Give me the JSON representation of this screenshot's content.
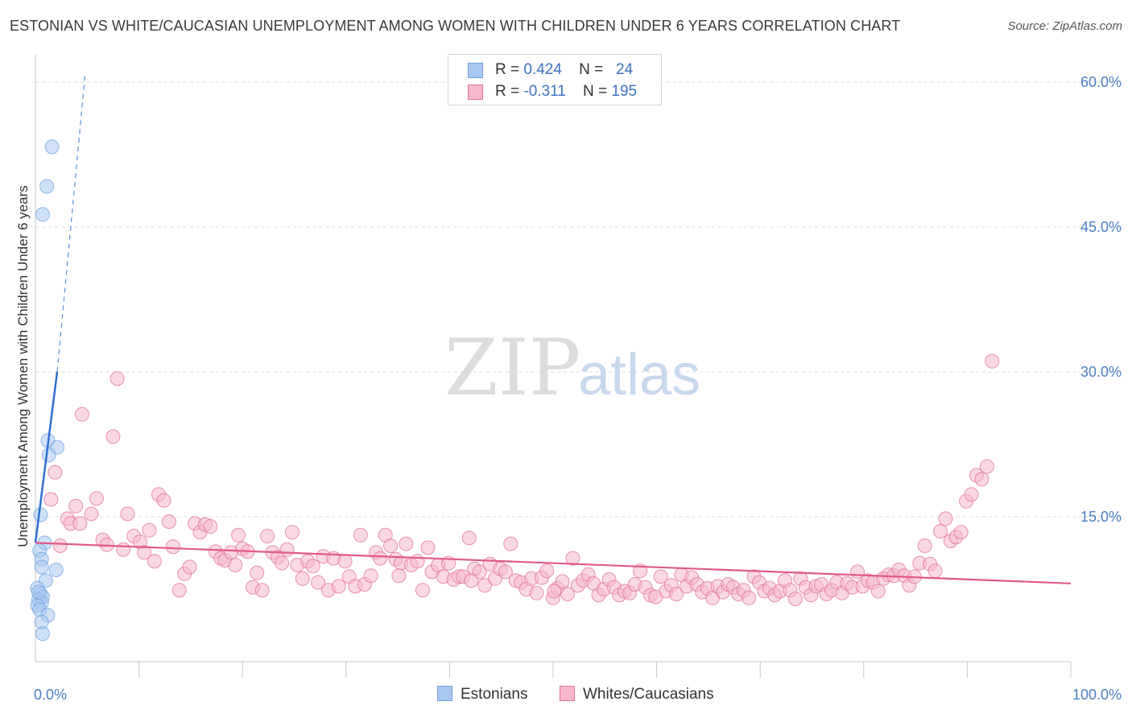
{
  "title": "ESTONIAN VS WHITE/CAUCASIAN UNEMPLOYMENT AMONG WOMEN WITH CHILDREN UNDER 6 YEARS CORRELATION CHART",
  "source": "Source: ZipAtlas.com",
  "watermark": {
    "zip": "ZIP",
    "atlas": "atlas"
  },
  "legend": {
    "series1": {
      "r_label": "R =",
      "r_value": "0.424",
      "n_label": "N =",
      "n_value": "24",
      "color": "#a9c8f0"
    },
    "series2": {
      "r_label": "R =",
      "r_value": "-0.311",
      "n_label": "N =",
      "n_value": "195",
      "color": "#f5b8cb"
    }
  },
  "bottom_legend": {
    "series1": "Estonians",
    "series2": "Whites/Caucasians"
  },
  "chart_data": {
    "type": "scatter",
    "title": "ESTONIAN VS WHITE/CAUCASIAN UNEMPLOYMENT AMONG WOMEN WITH CHILDREN UNDER 6 YEARS CORRELATION CHART",
    "xlabel": "",
    "ylabel": "Unemployment Among Women with Children Under 6 years",
    "xlim": [
      0,
      100
    ],
    "ylim": [
      0,
      62
    ],
    "x_tick_labels": [
      "0.0%",
      "100.0%"
    ],
    "y_ticks": [
      15,
      30,
      45,
      60
    ],
    "y_tick_labels": [
      "15.0%",
      "30.0%",
      "45.0%",
      "60.0%"
    ],
    "grid": true,
    "series": [
      {
        "name": "Estonians",
        "color": "#6fa0df",
        "fill": "#a9c8f0",
        "r": 0.424,
        "n": 24,
        "trend": {
          "x0": 0,
          "y0": 12.3,
          "x1": 2.1,
          "y1": 30.0,
          "dash_to": [
            4.8,
            60.8
          ]
        },
        "points": [
          [
            1.6,
            53.3
          ],
          [
            1.1,
            49.2
          ],
          [
            0.7,
            46.3
          ],
          [
            1.2,
            22.9
          ],
          [
            2.1,
            22.2
          ],
          [
            1.3,
            21.4
          ],
          [
            0.5,
            15.2
          ],
          [
            0.9,
            12.3
          ],
          [
            0.4,
            11.5
          ],
          [
            0.6,
            10.6
          ],
          [
            0.6,
            9.8
          ],
          [
            2.0,
            9.5
          ],
          [
            1.0,
            8.4
          ],
          [
            0.2,
            7.6
          ],
          [
            0.5,
            7.0
          ],
          [
            0.7,
            6.7
          ],
          [
            0.3,
            6.4
          ],
          [
            0.6,
            6.1
          ],
          [
            0.2,
            5.8
          ],
          [
            0.4,
            5.4
          ],
          [
            1.2,
            4.8
          ],
          [
            0.6,
            4.1
          ],
          [
            0.7,
            2.9
          ],
          [
            0.3,
            7.2
          ]
        ]
      },
      {
        "name": "Whites/Caucasians",
        "color": "#e07099",
        "fill": "#f5b8cb",
        "r": -0.311,
        "n": 195,
        "trend": {
          "x0": 0,
          "y0": 12.3,
          "x1": 100,
          "y1": 8.1
        },
        "points": [
          [
            7.9,
            29.3
          ],
          [
            4.5,
            25.6
          ],
          [
            7.5,
            23.3
          ],
          [
            1.9,
            19.6
          ],
          [
            1.5,
            16.8
          ],
          [
            3.9,
            16.1
          ],
          [
            5.9,
            16.9
          ],
          [
            8.9,
            15.3
          ],
          [
            11.9,
            17.3
          ],
          [
            12.4,
            16.7
          ],
          [
            2.4,
            12.0
          ],
          [
            3.1,
            14.8
          ],
          [
            3.4,
            14.3
          ],
          [
            4.3,
            14.3
          ],
          [
            5.4,
            15.3
          ],
          [
            6.5,
            12.6
          ],
          [
            6.9,
            12.1
          ],
          [
            8.5,
            11.6
          ],
          [
            9.5,
            13.0
          ],
          [
            10.1,
            12.4
          ],
          [
            10.5,
            11.3
          ],
          [
            11.0,
            13.6
          ],
          [
            11.5,
            10.4
          ],
          [
            12.9,
            14.5
          ],
          [
            13.3,
            11.9
          ],
          [
            13.9,
            7.4
          ],
          [
            14.4,
            9.1
          ],
          [
            14.9,
            9.8
          ],
          [
            15.4,
            14.3
          ],
          [
            15.9,
            13.4
          ],
          [
            16.4,
            14.2
          ],
          [
            16.9,
            14.0
          ],
          [
            17.4,
            11.4
          ],
          [
            17.9,
            10.7
          ],
          [
            18.3,
            10.5
          ],
          [
            18.9,
            11.3
          ],
          [
            19.3,
            10.0
          ],
          [
            19.6,
            13.1
          ],
          [
            20.0,
            11.7
          ],
          [
            20.5,
            11.4
          ],
          [
            21.0,
            7.7
          ],
          [
            21.4,
            9.2
          ],
          [
            21.9,
            7.4
          ],
          [
            22.4,
            13.0
          ],
          [
            22.9,
            11.3
          ],
          [
            23.4,
            10.8
          ],
          [
            23.8,
            10.2
          ],
          [
            24.3,
            11.6
          ],
          [
            24.8,
            13.4
          ],
          [
            25.3,
            10.0
          ],
          [
            25.8,
            8.6
          ],
          [
            26.3,
            10.4
          ],
          [
            26.8,
            9.9
          ],
          [
            27.3,
            8.2
          ],
          [
            27.8,
            10.9
          ],
          [
            28.3,
            7.4
          ],
          [
            28.8,
            10.7
          ],
          [
            29.3,
            7.8
          ],
          [
            29.9,
            10.4
          ],
          [
            30.3,
            8.8
          ],
          [
            30.9,
            7.8
          ],
          [
            31.4,
            13.1
          ],
          [
            31.8,
            8.0
          ],
          [
            32.4,
            8.9
          ],
          [
            32.9,
            11.3
          ],
          [
            33.3,
            10.7
          ],
          [
            33.8,
            13.1
          ],
          [
            34.3,
            12.0
          ],
          [
            34.8,
            10.6
          ],
          [
            35.3,
            10.2
          ],
          [
            35.8,
            12.2
          ],
          [
            36.3,
            10.0
          ],
          [
            36.9,
            10.4
          ],
          [
            37.4,
            7.4
          ],
          [
            37.9,
            11.8
          ],
          [
            38.3,
            9.3
          ],
          [
            38.9,
            10.0
          ],
          [
            39.4,
            8.8
          ],
          [
            39.9,
            10.2
          ],
          [
            40.4,
            8.5
          ],
          [
            40.9,
            8.8
          ],
          [
            41.3,
            8.8
          ],
          [
            41.9,
            12.8
          ],
          [
            42.4,
            9.6
          ],
          [
            42.9,
            9.3
          ],
          [
            43.4,
            7.9
          ],
          [
            43.9,
            10.1
          ],
          [
            44.4,
            8.6
          ],
          [
            44.9,
            9.6
          ],
          [
            45.4,
            9.3
          ],
          [
            45.9,
            12.2
          ],
          [
            46.4,
            8.4
          ],
          [
            46.9,
            8.2
          ],
          [
            47.4,
            7.5
          ],
          [
            47.9,
            8.6
          ],
          [
            48.4,
            7.1
          ],
          [
            48.9,
            8.7
          ],
          [
            49.4,
            9.4
          ],
          [
            50.0,
            6.6
          ],
          [
            50.4,
            7.6
          ],
          [
            50.9,
            8.3
          ],
          [
            51.4,
            7.0
          ],
          [
            51.9,
            10.7
          ],
          [
            52.4,
            7.9
          ],
          [
            52.9,
            8.4
          ],
          [
            53.4,
            9.0
          ],
          [
            53.9,
            8.1
          ],
          [
            54.4,
            6.9
          ],
          [
            54.9,
            7.5
          ],
          [
            55.4,
            8.5
          ],
          [
            55.9,
            7.7
          ],
          [
            56.4,
            6.9
          ],
          [
            56.9,
            7.3
          ],
          [
            57.4,
            7.1
          ],
          [
            57.9,
            8.0
          ],
          [
            58.4,
            9.4
          ],
          [
            58.9,
            7.7
          ],
          [
            59.4,
            6.9
          ],
          [
            59.9,
            6.7
          ],
          [
            60.4,
            8.8
          ],
          [
            60.9,
            7.3
          ],
          [
            61.4,
            7.9
          ],
          [
            61.9,
            7.0
          ],
          [
            62.4,
            9.0
          ],
          [
            62.9,
            7.8
          ],
          [
            63.4,
            8.7
          ],
          [
            63.9,
            8.0
          ],
          [
            64.4,
            7.2
          ],
          [
            64.9,
            7.6
          ],
          [
            65.4,
            6.6
          ],
          [
            65.9,
            7.8
          ],
          [
            66.4,
            7.2
          ],
          [
            66.9,
            8.0
          ],
          [
            67.4,
            7.7
          ],
          [
            67.9,
            7.0
          ],
          [
            68.4,
            7.4
          ],
          [
            68.9,
            6.6
          ],
          [
            69.4,
            8.8
          ],
          [
            69.9,
            8.2
          ],
          [
            70.4,
            7.3
          ],
          [
            70.9,
            7.6
          ],
          [
            71.4,
            6.9
          ],
          [
            71.9,
            7.3
          ],
          [
            72.4,
            8.4
          ],
          [
            72.9,
            7.4
          ],
          [
            73.4,
            6.5
          ],
          [
            73.9,
            8.6
          ],
          [
            74.4,
            7.7
          ],
          [
            74.9,
            6.9
          ],
          [
            75.4,
            7.8
          ],
          [
            75.9,
            8.0
          ],
          [
            76.4,
            7.0
          ],
          [
            76.9,
            7.4
          ],
          [
            77.4,
            8.2
          ],
          [
            77.9,
            7.1
          ],
          [
            78.4,
            8.1
          ],
          [
            78.9,
            7.7
          ],
          [
            79.4,
            9.3
          ],
          [
            79.9,
            7.8
          ],
          [
            80.4,
            8.4
          ],
          [
            80.9,
            8.2
          ],
          [
            81.4,
            7.3
          ],
          [
            81.9,
            8.6
          ],
          [
            82.4,
            9.0
          ],
          [
            82.9,
            8.9
          ],
          [
            83.4,
            9.5
          ],
          [
            83.9,
            8.9
          ],
          [
            84.4,
            7.9
          ],
          [
            84.9,
            8.8
          ],
          [
            85.4,
            10.2
          ],
          [
            85.9,
            12.0
          ],
          [
            86.4,
            10.1
          ],
          [
            86.9,
            9.4
          ],
          [
            87.4,
            13.5
          ],
          [
            87.9,
            14.8
          ],
          [
            88.4,
            12.5
          ],
          [
            88.9,
            12.9
          ],
          [
            89.4,
            13.4
          ],
          [
            89.9,
            16.6
          ],
          [
            90.4,
            17.3
          ],
          [
            90.9,
            19.3
          ],
          [
            91.4,
            18.9
          ],
          [
            91.9,
            20.2
          ],
          [
            92.4,
            31.1
          ],
          [
            50.1,
            7.3
          ],
          [
            35.1,
            8.9
          ],
          [
            42.1,
            8.4
          ]
        ]
      }
    ]
  }
}
